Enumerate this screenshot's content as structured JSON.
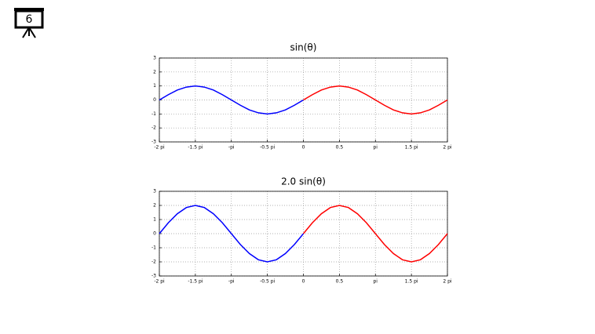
{
  "slide_number": "6",
  "chart_data": [
    {
      "type": "line",
      "title": "sin(θ)",
      "xlim": [
        -2,
        2
      ],
      "ylim": [
        -3,
        3
      ],
      "xticks": [
        {
          "value": -2,
          "label": "-2 pi"
        },
        {
          "value": -1.5,
          "label": "-1.5 pi"
        },
        {
          "value": -1,
          "label": "-pi"
        },
        {
          "value": -0.5,
          "label": "-0.5 pi"
        },
        0,
        0.5,
        {
          "value": 1,
          "label": "pi"
        },
        {
          "value": 1.5,
          "label": "1.5 pi"
        },
        {
          "value": 2,
          "label": "2 pi"
        }
      ],
      "yticks": [
        -3,
        -2,
        -1,
        0,
        1,
        2,
        3
      ],
      "grid": true,
      "series": [
        {
          "color": "#0000ff",
          "x": [
            -2,
            -1.875,
            -1.75,
            -1.625,
            -1.5,
            -1.375,
            -1.25,
            -1.125,
            -1,
            -0.875,
            -0.75,
            -0.625,
            -0.5,
            -0.375,
            -0.25,
            -0.125,
            0
          ],
          "values": [
            0,
            0.38,
            0.71,
            0.92,
            1,
            0.92,
            0.71,
            0.38,
            0,
            -0.38,
            -0.71,
            -0.92,
            -1,
            -0.92,
            -0.71,
            -0.38,
            0
          ]
        },
        {
          "color": "#ff0000",
          "x": [
            0,
            0.125,
            0.25,
            0.375,
            0.5,
            0.625,
            0.75,
            0.875,
            1,
            1.125,
            1.25,
            1.375,
            1.5,
            1.625,
            1.75,
            1.875,
            2
          ],
          "values": [
            0,
            0.38,
            0.71,
            0.92,
            1,
            0.92,
            0.71,
            0.38,
            0,
            -0.38,
            -0.71,
            -0.92,
            -1,
            -0.92,
            -0.71,
            -0.38,
            0
          ]
        }
      ]
    },
    {
      "type": "line",
      "title": "2.0 sin(θ)",
      "xlim": [
        -2,
        2
      ],
      "ylim": [
        -3,
        3
      ],
      "xticks": [
        {
          "value": -2,
          "label": "-2 pi"
        },
        {
          "value": -1.5,
          "label": "-1.5 pi"
        },
        {
          "value": -1,
          "label": "-pi"
        },
        {
          "value": -0.5,
          "label": "-0.5 pi"
        },
        0,
        0.5,
        {
          "value": 1,
          "label": "pi"
        },
        {
          "value": 1.5,
          "label": "1.5 pi"
        },
        {
          "value": 2,
          "label": "2 pi"
        }
      ],
      "yticks": [
        -3,
        -2,
        -1,
        0,
        1,
        2,
        3
      ],
      "grid": true,
      "series": [
        {
          "color": "#0000ff",
          "x": [
            -2,
            -1.875,
            -1.75,
            -1.625,
            -1.5,
            -1.375,
            -1.25,
            -1.125,
            -1,
            -0.875,
            -0.75,
            -0.625,
            -0.5,
            -0.375,
            -0.25,
            -0.125,
            0
          ],
          "values": [
            0,
            0.77,
            1.41,
            1.85,
            2,
            1.85,
            1.41,
            0.77,
            0,
            -0.77,
            -1.41,
            -1.85,
            -2,
            -1.85,
            -1.41,
            -0.77,
            0
          ]
        },
        {
          "color": "#ff0000",
          "x": [
            0,
            0.125,
            0.25,
            0.375,
            0.5,
            0.625,
            0.75,
            0.875,
            1,
            1.125,
            1.25,
            1.375,
            1.5,
            1.625,
            1.75,
            1.875,
            2
          ],
          "values": [
            0,
            0.77,
            1.41,
            1.85,
            2,
            1.85,
            1.41,
            0.77,
            0,
            -0.77,
            -1.41,
            -1.85,
            -2,
            -1.85,
            -1.41,
            -0.77,
            0
          ]
        }
      ]
    }
  ]
}
